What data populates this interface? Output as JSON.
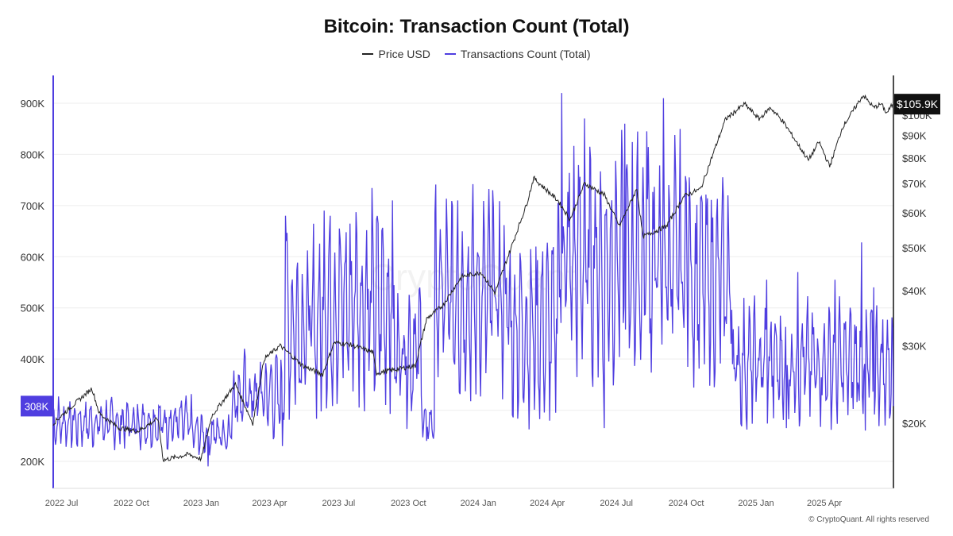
{
  "chart_data": {
    "type": "line",
    "title": "Bitcoin: Transaction Count (Total)",
    "legend": [
      "Price USD",
      "Transactions Count (Total)"
    ],
    "legend_placement": "top-center",
    "left_axis": {
      "ticks": [
        "200K",
        "300K",
        "400K",
        "500K",
        "600K",
        "700K",
        "800K",
        "900K"
      ],
      "ylim": [
        160000,
        950000
      ]
    },
    "right_axis": {
      "ticks": [
        "$20K",
        "$30K",
        "$40K",
        "$50K",
        "$60K",
        "$70K",
        "$80K",
        "$90K",
        "$100K"
      ],
      "scale": "log"
    },
    "x_ticks": [
      "2022 Jul",
      "2022 Oct",
      "2023 Jan",
      "2023 Apr",
      "2023 Jul",
      "2023 Oct",
      "2024 Jan",
      "2024 Apr",
      "2024 Jul",
      "2024 Oct",
      "2025 Jan",
      "2025 Apr"
    ],
    "grid": true,
    "current_price_label": "$105.9K",
    "current_tx_label": "308K",
    "series": [
      {
        "name": "Price USD",
        "color": "#222222",
        "points": [
          [
            "2022-06-20",
            20000
          ],
          [
            "2022-07-10",
            21500
          ],
          [
            "2022-08-10",
            24000
          ],
          [
            "2022-08-20",
            21000
          ],
          [
            "2022-09-15",
            19500
          ],
          [
            "2022-10-10",
            19200
          ],
          [
            "2022-11-05",
            20500
          ],
          [
            "2022-11-12",
            16500
          ],
          [
            "2022-12-15",
            17000
          ],
          [
            "2023-01-01",
            16600
          ],
          [
            "2023-01-15",
            20800
          ],
          [
            "2023-02-15",
            24500
          ],
          [
            "2023-03-10",
            20000
          ],
          [
            "2023-03-25",
            28000
          ],
          [
            "2023-04-15",
            30000
          ],
          [
            "2023-05-15",
            27000
          ],
          [
            "2023-06-10",
            25800
          ],
          [
            "2023-06-25",
            30500
          ],
          [
            "2023-07-15",
            30200
          ],
          [
            "2023-08-15",
            29000
          ],
          [
            "2023-08-20",
            26000
          ],
          [
            "2023-09-15",
            26500
          ],
          [
            "2023-10-10",
            27000
          ],
          [
            "2023-10-25",
            34500
          ],
          [
            "2023-11-15",
            37000
          ],
          [
            "2023-12-10",
            43000
          ],
          [
            "2024-01-05",
            44000
          ],
          [
            "2024-01-23",
            39500
          ],
          [
            "2024-02-15",
            51000
          ],
          [
            "2024-03-05",
            63000
          ],
          [
            "2024-03-14",
            72000
          ],
          [
            "2024-04-15",
            64000
          ],
          [
            "2024-05-01",
            58000
          ],
          [
            "2024-05-20",
            70000
          ],
          [
            "2024-06-15",
            66000
          ],
          [
            "2024-07-05",
            56000
          ],
          [
            "2024-07-28",
            68000
          ],
          [
            "2024-08-05",
            53000
          ],
          [
            "2024-09-05",
            56000
          ],
          [
            "2024-09-28",
            65500
          ],
          [
            "2024-10-20",
            68000
          ],
          [
            "2024-11-12",
            88000
          ],
          [
            "2024-11-22",
            98000
          ],
          [
            "2024-12-17",
            106000
          ],
          [
            "2025-01-05",
            98000
          ],
          [
            "2025-01-20",
            104000
          ],
          [
            "2025-02-05",
            97000
          ],
          [
            "2025-02-25",
            86000
          ],
          [
            "2025-03-11",
            79000
          ],
          [
            "2025-03-25",
            87000
          ],
          [
            "2025-04-08",
            76500
          ],
          [
            "2025-04-25",
            94000
          ],
          [
            "2025-05-10",
            103000
          ],
          [
            "2025-05-22",
            111000
          ],
          [
            "2025-06-05",
            104000
          ],
          [
            "2025-06-15",
            106000
          ],
          [
            "2025-06-22",
            101000
          ],
          [
            "2025-06-30",
            105900
          ]
        ]
      },
      {
        "name": "Transactions Count (Total)",
        "color": "#4f3ee0",
        "segments": [
          [
            "2022-06-20",
            "2022-12-20",
            275000,
            55000
          ],
          [
            "2022-12-20",
            "2023-02-10",
            255000,
            45000
          ],
          [
            "2023-02-10",
            "2023-04-20",
            330000,
            95000
          ],
          [
            "2023-04-20",
            "2023-06-10",
            470000,
            200000
          ],
          [
            "2023-06-10",
            "2023-09-10",
            510000,
            220000
          ],
          [
            "2023-09-10",
            "2023-10-20",
            420000,
            160000
          ],
          [
            "2023-10-20",
            "2023-11-05",
            275000,
            40000
          ],
          [
            "2023-11-05",
            "2024-02-10",
            520000,
            220000
          ],
          [
            "2024-02-10",
            "2024-04-15",
            460000,
            200000
          ],
          [
            "2024-04-15",
            "2024-10-05",
            590000,
            250000
          ],
          [
            "2024-10-05",
            "2024-12-01",
            550000,
            210000
          ],
          [
            "2024-12-01",
            "2025-07-01",
            390000,
            130000
          ]
        ],
        "peaks": [
          [
            "2023-04-22",
            680000
          ],
          [
            "2023-06-12",
            690000
          ],
          [
            "2023-07-25",
            645000
          ],
          [
            "2023-09-10",
            710000
          ],
          [
            "2023-12-05",
            710000
          ],
          [
            "2024-01-20",
            730000
          ],
          [
            "2024-04-20",
            920000
          ],
          [
            "2024-05-20",
            870000
          ],
          [
            "2024-07-12",
            860000
          ],
          [
            "2024-08-10",
            845000
          ],
          [
            "2024-09-01",
            910000
          ],
          [
            "2024-10-05",
            755000
          ],
          [
            "2024-10-20",
            715000
          ],
          [
            "2024-11-25",
            720000
          ],
          [
            "2025-01-15",
            555000
          ],
          [
            "2025-02-25",
            570000
          ],
          [
            "2025-04-15",
            555000
          ],
          [
            "2025-05-20",
            628000
          ],
          [
            "2025-06-05",
            540000
          ]
        ],
        "troughs": [
          [
            "2023-01-10",
            190000
          ],
          [
            "2023-04-18",
            230000
          ],
          [
            "2023-10-25",
            240000
          ],
          [
            "2024-06-15",
            265000
          ],
          [
            "2025-02-10",
            265000
          ],
          [
            "2025-05-25",
            260000
          ],
          [
            "2025-06-20",
            270000
          ]
        ],
        "final_value": 308000
      }
    ]
  },
  "footer": "© CryptoQuant. All rights reserved"
}
